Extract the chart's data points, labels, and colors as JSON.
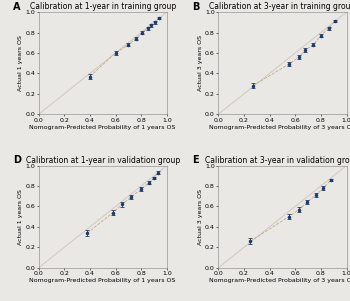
{
  "panels": [
    {
      "label": "A",
      "title": "Calibration at 1-year in training group",
      "xlabel": "Nomogram-Predicted Probability of 1 years OS",
      "ylabel": "Actual 1 years OS",
      "xlim": [
        0.0,
        1.0
      ],
      "ylim": [
        0.0,
        1.0
      ],
      "xticks": [
        0.0,
        0.2,
        0.4,
        0.6,
        0.8,
        1.0
      ],
      "yticks": [
        0.0,
        0.2,
        0.4,
        0.6,
        0.8,
        1.0
      ],
      "points_x": [
        0.4,
        0.6,
        0.7,
        0.76,
        0.81,
        0.85,
        0.88,
        0.91,
        0.94
      ],
      "points_y": [
        0.37,
        0.6,
        0.68,
        0.74,
        0.8,
        0.84,
        0.87,
        0.9,
        0.94
      ],
      "yerr": [
        0.02,
        0.018,
        0.016,
        0.015,
        0.014,
        0.013,
        0.012,
        0.012,
        0.011
      ]
    },
    {
      "label": "B",
      "title": "Calibration at 3-year in training group",
      "xlabel": "Nomogram-Predicted Probability of 3 years OS",
      "ylabel": "Actual 3 years OS",
      "xlim": [
        0.0,
        1.0
      ],
      "ylim": [
        0.0,
        1.0
      ],
      "xticks": [
        0.0,
        0.2,
        0.4,
        0.6,
        0.8,
        1.0
      ],
      "yticks": [
        0.0,
        0.2,
        0.4,
        0.6,
        0.8,
        1.0
      ],
      "points_x": [
        0.27,
        0.55,
        0.63,
        0.68,
        0.74,
        0.8,
        0.86,
        0.91
      ],
      "points_y": [
        0.28,
        0.49,
        0.56,
        0.63,
        0.68,
        0.77,
        0.84,
        0.91
      ],
      "yerr": [
        0.025,
        0.02,
        0.018,
        0.016,
        0.015,
        0.014,
        0.013,
        0.012
      ]
    },
    {
      "label": "D",
      "title": "Calibration at 1-year in validation group",
      "xlabel": "Nomogram-Predicted Probability of 1 years OS",
      "ylabel": "Actual 1 years OS",
      "xlim": [
        0.0,
        1.0
      ],
      "ylim": [
        0.0,
        1.0
      ],
      "xticks": [
        0.0,
        0.2,
        0.4,
        0.6,
        0.8,
        1.0
      ],
      "yticks": [
        0.0,
        0.2,
        0.4,
        0.6,
        0.8,
        1.0
      ],
      "points_x": [
        0.38,
        0.58,
        0.65,
        0.72,
        0.8,
        0.86,
        0.9,
        0.93
      ],
      "points_y": [
        0.34,
        0.54,
        0.62,
        0.69,
        0.77,
        0.83,
        0.88,
        0.93
      ],
      "yerr": [
        0.03,
        0.025,
        0.022,
        0.02,
        0.016,
        0.015,
        0.013,
        0.012
      ]
    },
    {
      "label": "E",
      "title": "Calibration at 3-year in validation group",
      "xlabel": "Nomogram-Predicted Probability of 3 years OS",
      "ylabel": "Actual 3 years OS",
      "xlim": [
        0.0,
        1.0
      ],
      "ylim": [
        0.0,
        1.0
      ],
      "xticks": [
        0.0,
        0.2,
        0.4,
        0.6,
        0.8,
        1.0
      ],
      "yticks": [
        0.0,
        0.2,
        0.4,
        0.6,
        0.8,
        1.0
      ],
      "points_x": [
        0.25,
        0.55,
        0.63,
        0.69,
        0.76,
        0.82,
        0.88
      ],
      "points_y": [
        0.26,
        0.5,
        0.57,
        0.64,
        0.71,
        0.78,
        0.86
      ],
      "yerr": [
        0.03,
        0.025,
        0.022,
        0.02,
        0.018,
        0.016,
        0.013
      ]
    }
  ],
  "dot_color": "#1a3a6b",
  "line_color": "#c8a882",
  "ref_line_color": "#d0c8c0",
  "bg_color": "#eae8e4",
  "label_fontsize": 7,
  "title_fontsize": 5.5,
  "tick_fontsize": 4.5,
  "axis_label_fontsize": 4.5
}
